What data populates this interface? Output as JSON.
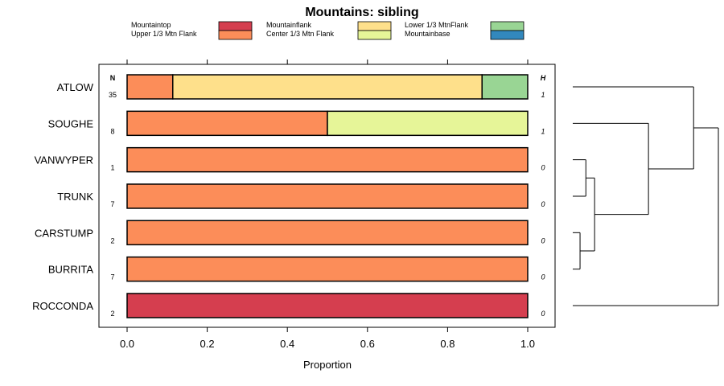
{
  "chart_data": {
    "type": "bar",
    "title": "Mountains: sibling",
    "xlabel": "Proportion",
    "ylabel": "",
    "xlim": [
      0,
      1
    ],
    "xticks": [
      0,
      0.2,
      0.4,
      0.6,
      0.8,
      1
    ],
    "xtick_labels": [
      "0.0",
      "0.2",
      "0.4",
      "0.6",
      "0.8",
      "1.0"
    ],
    "n_header": "N",
    "h_header": "H",
    "legend": [
      {
        "label": "Mountaintop",
        "color": "#d53e4f"
      },
      {
        "label": "Mountainflank",
        "color": "#fee08b"
      },
      {
        "label": "Lower 1/3 MtnFlank",
        "color": "#99d594"
      },
      {
        "label": "Upper 1/3 Mtn Flank",
        "color": "#fc8d59"
      },
      {
        "label": "Center 1/3 Mtn Flank",
        "color": "#e6f598"
      },
      {
        "label": "Mountainbase",
        "color": "#3288bd"
      }
    ],
    "categories": [
      "ATLOW",
      "SOUGHE",
      "VANWYPER",
      "TRUNK",
      "CARSTUMP",
      "BURRITA",
      "ROCCONDA"
    ],
    "n_values": [
      "35",
      "8",
      "1",
      "7",
      "2",
      "7",
      "2"
    ],
    "h_values": [
      "1",
      "1",
      "0",
      "0",
      "0",
      "0",
      "0"
    ],
    "segments": [
      [
        {
          "class": "Upper 1/3 Mtn Flank",
          "value": 0.114
        },
        {
          "class": "Mountainflank",
          "value": 0.772
        },
        {
          "class": "Lower 1/3 MtnFlank",
          "value": 0.114
        }
      ],
      [
        {
          "class": "Upper 1/3 Mtn Flank",
          "value": 0.5
        },
        {
          "class": "Center 1/3 Mtn Flank",
          "value": 0.5
        }
      ],
      [
        {
          "class": "Upper 1/3 Mtn Flank",
          "value": 1.0
        }
      ],
      [
        {
          "class": "Upper 1/3 Mtn Flank",
          "value": 1.0
        }
      ],
      [
        {
          "class": "Upper 1/3 Mtn Flank",
          "value": 1.0
        }
      ],
      [
        {
          "class": "Upper 1/3 Mtn Flank",
          "value": 1.0
        }
      ],
      [
        {
          "class": "Mountaintop",
          "value": 1.0
        }
      ]
    ],
    "dendrogram": {
      "type": "tree",
      "merges": [
        {
          "children": [
            "CARSTUMP",
            "BURRITA"
          ],
          "height": 0.05
        },
        {
          "children": [
            "VANWYPER",
            "TRUNK"
          ],
          "height": 0.09
        },
        {
          "children": [
            "merge1",
            "merge2"
          ],
          "height": 0.15
        },
        {
          "children": [
            "SOUGHE",
            "merge3"
          ],
          "height": 0.52
        },
        {
          "children": [
            "ATLOW",
            "merge4"
          ],
          "height": 0.83
        },
        {
          "children": [
            "ROCCONDA",
            "merge5"
          ],
          "height": 1.0
        }
      ]
    }
  }
}
